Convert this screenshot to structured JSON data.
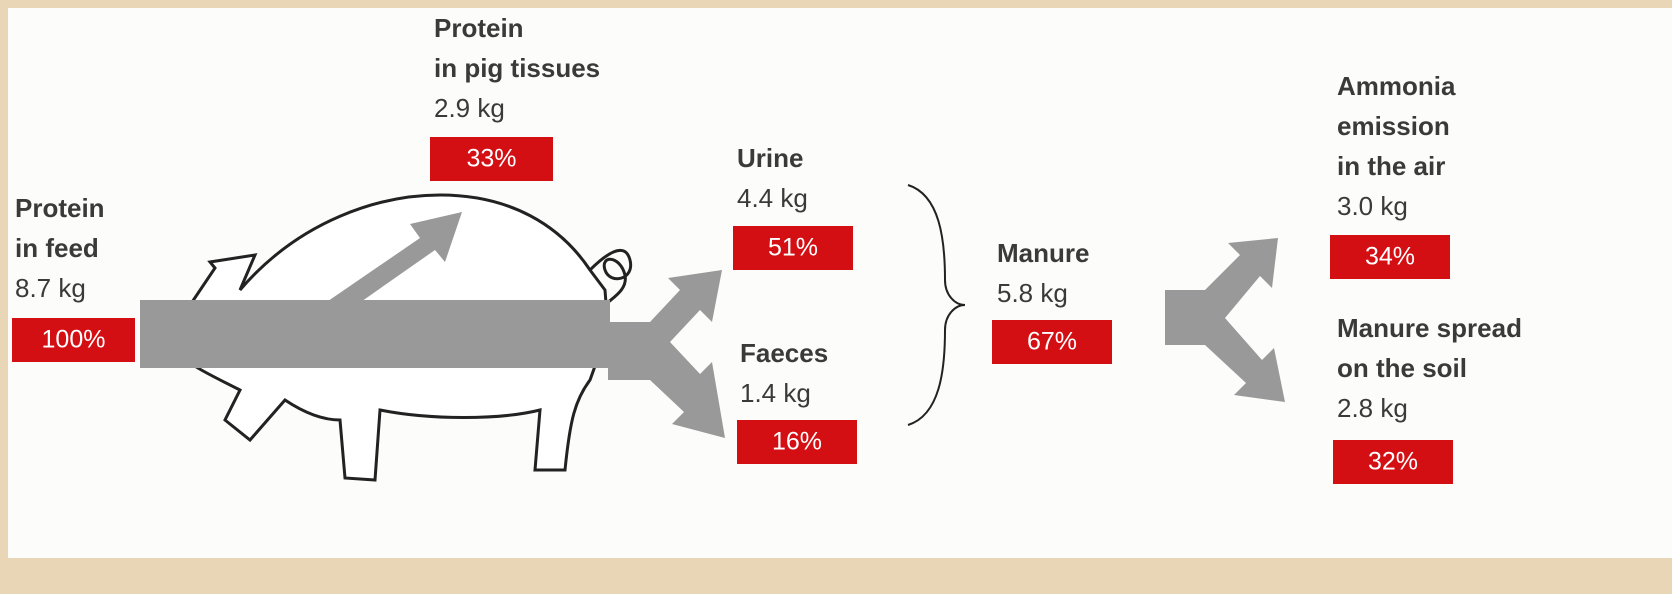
{
  "nodes": [
    {
      "label": [
        "Protein",
        "in feed"
      ],
      "amount": "8.7 kg",
      "share": "100%"
    },
    {
      "label": [
        "Protein",
        "in pig tissues"
      ],
      "amount": "2.9 kg",
      "share": "33%"
    },
    {
      "label": [
        "Urine"
      ],
      "amount": "4.4 kg",
      "share": "51%"
    },
    {
      "label": [
        "Faeces"
      ],
      "amount": "1.4 kg",
      "share": "16%"
    },
    {
      "label": [
        "Manure"
      ],
      "amount": "5.8 kg",
      "share": "67%"
    },
    {
      "label": [
        "Ammonia",
        "emission",
        "in the air"
      ],
      "amount": "3.0 kg",
      "share": "34%"
    },
    {
      "label": [
        "Manure spread",
        "on the soil"
      ],
      "amount": "2.8 kg",
      "share": "32%"
    }
  ]
}
